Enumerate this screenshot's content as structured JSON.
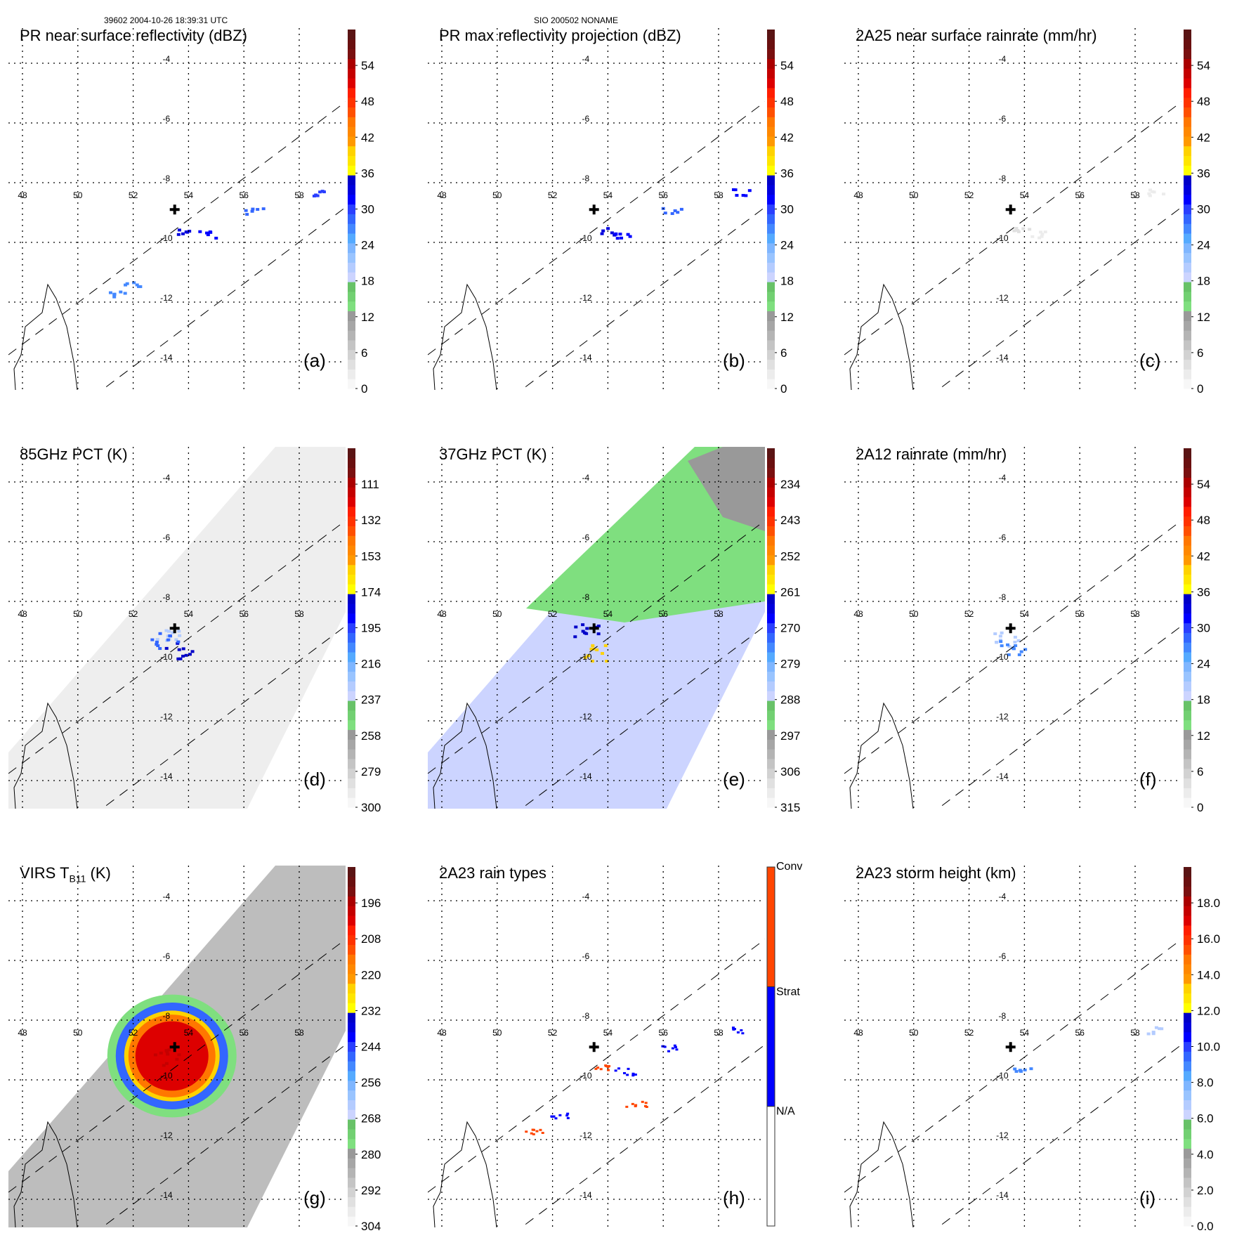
{
  "header": {
    "orbit_time": "39602 2004-10-26 18:39:31 UTC",
    "storm_id": "SIO 200502 NONAME"
  },
  "chart_data": [
    {
      "id": "a",
      "type": "heatmap",
      "panel_label": "(a)",
      "title": "PR near surface reflectivity (dBZ)",
      "colorbar": {
        "ticks": [
          "0",
          "6",
          "12",
          "18",
          "24",
          "30",
          "36",
          "42",
          "48",
          "54"
        ],
        "min": 0,
        "max": 60
      },
      "field": "swath_narrow",
      "swath": "PR",
      "lon_ticks": [
        "48",
        "50",
        "52",
        "54",
        "56",
        "58"
      ],
      "lat_ticks": [
        "-4",
        "-6",
        "-8",
        "-10",
        "-12",
        "-14"
      ],
      "storm_center": {
        "lon": 53.5,
        "lat": -8.9
      },
      "features": [
        {
          "lon": 53.9,
          "lat": -9.6,
          "value": 33
        },
        {
          "lon": 54.6,
          "lat": -9.7,
          "value": 31
        },
        {
          "lon": 56.3,
          "lat": -8.9,
          "value": 28
        },
        {
          "lon": 58.8,
          "lat": -8.3,
          "value": 30
        },
        {
          "lon": 52.0,
          "lat": -11.4,
          "value": 26
        },
        {
          "lon": 51.3,
          "lat": -11.7,
          "value": 27
        }
      ]
    },
    {
      "id": "b",
      "type": "heatmap",
      "panel_label": "(b)",
      "title": "PR max reflectivity projection (dBZ)",
      "colorbar": {
        "ticks": [
          "0",
          "6",
          "12",
          "18",
          "24",
          "30",
          "36",
          "42",
          "48",
          "54"
        ],
        "min": 0,
        "max": 60
      },
      "field": "swath_narrow",
      "swath": "PR",
      "lon_ticks": [
        "48",
        "50",
        "52",
        "54",
        "56",
        "58"
      ],
      "lat_ticks": [
        "-4",
        "-6",
        "-8",
        "-10",
        "-12",
        "-14"
      ],
      "storm_center": {
        "lon": 53.5,
        "lat": -8.9
      },
      "features": [
        {
          "lon": 53.9,
          "lat": -9.6,
          "value": 34
        },
        {
          "lon": 54.6,
          "lat": -9.7,
          "value": 32
        },
        {
          "lon": 56.3,
          "lat": -8.9,
          "value": 29
        },
        {
          "lon": 58.8,
          "lat": -8.3,
          "value": 31
        }
      ]
    },
    {
      "id": "c",
      "type": "heatmap",
      "panel_label": "(c)",
      "title": "2A25 near surface rainrate (mm/hr)",
      "colorbar": {
        "ticks": [
          "0",
          "6",
          "12",
          "18",
          "24",
          "30",
          "36",
          "42",
          "48",
          "54"
        ],
        "min": 0,
        "max": 60
      },
      "field": "swath_narrow",
      "swath": "PR",
      "lon_ticks": [
        "48",
        "50",
        "52",
        "54",
        "56",
        "58"
      ],
      "lat_ticks": [
        "-4",
        "-6",
        "-8",
        "-10",
        "-12",
        "-14"
      ],
      "storm_center": {
        "lon": 53.5,
        "lat": -8.9
      },
      "features": [
        {
          "lon": 53.9,
          "lat": -9.6,
          "value": 4
        },
        {
          "lon": 54.6,
          "lat": -9.7,
          "value": 3
        },
        {
          "lon": 58.8,
          "lat": -8.3,
          "value": 3
        }
      ]
    },
    {
      "id": "d",
      "type": "heatmap",
      "panel_label": "(d)",
      "title": "85GHz PCT (K)",
      "colorbar": {
        "ticks": [
          "300",
          "279",
          "258",
          "237",
          "216",
          "195",
          "174",
          "153",
          "132",
          "111"
        ],
        "min": 300,
        "max": 90
      },
      "field": "swath_wide",
      "swath": "TMI",
      "lon_ticks": [
        "48",
        "50",
        "52",
        "54",
        "56",
        "58"
      ],
      "lat_ticks": [
        "-4",
        "-6",
        "-8",
        "-10",
        "-12",
        "-14"
      ],
      "storm_center": {
        "lon": 53.5,
        "lat": -8.9
      },
      "features": [
        {
          "lon": 53.2,
          "lat": -9.0,
          "value": 230
        },
        {
          "lon": 53.6,
          "lat": -9.6,
          "value": 180
        },
        {
          "lon": 53.1,
          "lat": -9.3,
          "value": 200
        }
      ]
    },
    {
      "id": "e",
      "type": "heatmap",
      "panel_label": "(e)",
      "title": "37GHz PCT (K)",
      "colorbar": {
        "ticks": [
          "315",
          "306",
          "297",
          "288",
          "279",
          "270",
          "261",
          "252",
          "243",
          "234"
        ],
        "min": 315,
        "max": 225
      },
      "field": "swath_wide",
      "swath": "TMI",
      "lon_ticks": [
        "48",
        "50",
        "52",
        "54",
        "56",
        "58"
      ],
      "lat_ticks": [
        "-4",
        "-6",
        "-8",
        "-10",
        "-12",
        "-14"
      ],
      "storm_center": {
        "lon": 53.5,
        "lat": -8.9
      },
      "features": [
        {
          "lon": 53.2,
          "lat": -9.0,
          "value": 262
        },
        {
          "lon": 53.5,
          "lat": -9.7,
          "value": 255
        }
      ]
    },
    {
      "id": "f",
      "type": "heatmap",
      "panel_label": "(f)",
      "title": "2A12 rainrate (mm/hr)",
      "colorbar": {
        "ticks": [
          "0",
          "6",
          "12",
          "18",
          "24",
          "30",
          "36",
          "42",
          "48",
          "54"
        ],
        "min": 0,
        "max": 60
      },
      "field": "swath_wide",
      "swath": "TMI",
      "lon_ticks": [
        "48",
        "50",
        "52",
        "54",
        "56",
        "58"
      ],
      "lat_ticks": [
        "-4",
        "-6",
        "-8",
        "-10",
        "-12",
        "-14"
      ],
      "storm_center": {
        "lon": 53.5,
        "lat": -8.9
      },
      "features": [
        {
          "lon": 53.3,
          "lat": -9.2,
          "value": 20
        },
        {
          "lon": 53.5,
          "lat": -9.5,
          "value": 26
        }
      ]
    },
    {
      "id": "g",
      "type": "heatmap",
      "panel_label": "(g)",
      "title": "VIRS T",
      "title_sub": "B11",
      "title_suffix": " (K)",
      "colorbar": {
        "ticks": [
          "304",
          "292",
          "280",
          "268",
          "256",
          "244",
          "232",
          "220",
          "208",
          "196"
        ],
        "min": 304,
        "max": 184
      },
      "field": "swath_wide",
      "swath": "VIRS",
      "lon_ticks": [
        "48",
        "50",
        "52",
        "54",
        "56",
        "58"
      ],
      "lat_ticks": [
        "-4",
        "-6",
        "-8",
        "-10",
        "-12",
        "-14"
      ],
      "storm_center": {
        "lon": 53.5,
        "lat": -8.9
      },
      "features": [
        {
          "lon": 53.2,
          "lat": -9.2,
          "value": 200
        }
      ]
    },
    {
      "id": "h",
      "type": "heatmap",
      "panel_label": "(h)",
      "title": "2A23 rain types",
      "colorbar": {
        "categories": [
          "N/A",
          "Strat",
          "Conv"
        ],
        "colors": [
          "#ffffff",
          "#0000ff",
          "#ff4500"
        ]
      },
      "field": "swath_narrow",
      "swath": "PR",
      "lon_ticks": [
        "48",
        "50",
        "52",
        "54",
        "56",
        "58"
      ],
      "lat_ticks": [
        "-4",
        "-6",
        "-8",
        "-10",
        "-12",
        "-14"
      ],
      "storm_center": {
        "lon": 53.5,
        "lat": -8.9
      }
    },
    {
      "id": "i",
      "type": "heatmap",
      "panel_label": "(i)",
      "title": "2A23 storm height (km)",
      "colorbar": {
        "ticks": [
          "0.0",
          "2.0",
          "4.0",
          "6.0",
          "8.0",
          "10.0",
          "12.0",
          "14.0",
          "16.0",
          "18.0"
        ],
        "min": 0,
        "max": 20
      },
      "field": "swath_narrow",
      "swath": "PR",
      "lon_ticks": [
        "48",
        "50",
        "52",
        "54",
        "56",
        "58"
      ],
      "lat_ticks": [
        "-4",
        "-6",
        "-8",
        "-10",
        "-12",
        "-14"
      ],
      "storm_center": {
        "lon": 53.5,
        "lat": -8.9
      },
      "features": [
        {
          "lon": 53.9,
          "lat": -9.6,
          "value": 9
        },
        {
          "lon": 58.8,
          "lat": -8.3,
          "value": 7
        }
      ]
    }
  ],
  "colors": {
    "scale": [
      "#f7f7f7",
      "#ececec",
      "#e0e0e0",
      "#d2d2d2",
      "#c4c4c4",
      "#b4b4b4",
      "#a6a6a6",
      "#999999",
      "#7fdf7f",
      "#72d072",
      "#68c268",
      "#ccd4ff",
      "#b4ccff",
      "#99c4ff",
      "#7fb6ff",
      "#55aaff",
      "#4488ff",
      "#3366ff",
      "#2a3fff",
      "#0000ff",
      "#0000dd",
      "#0000c8",
      "#ffff00",
      "#ffe600",
      "#ffd200",
      "#ff9900",
      "#ff8800",
      "#ff7700",
      "#ff5000",
      "#ff3300",
      "#ff1e00",
      "#dd0000",
      "#c40000",
      "#aa0000",
      "#7a1010",
      "#6a1010",
      "#5a1414"
    ],
    "conv": "#ff4500",
    "strat": "#0000ff"
  }
}
